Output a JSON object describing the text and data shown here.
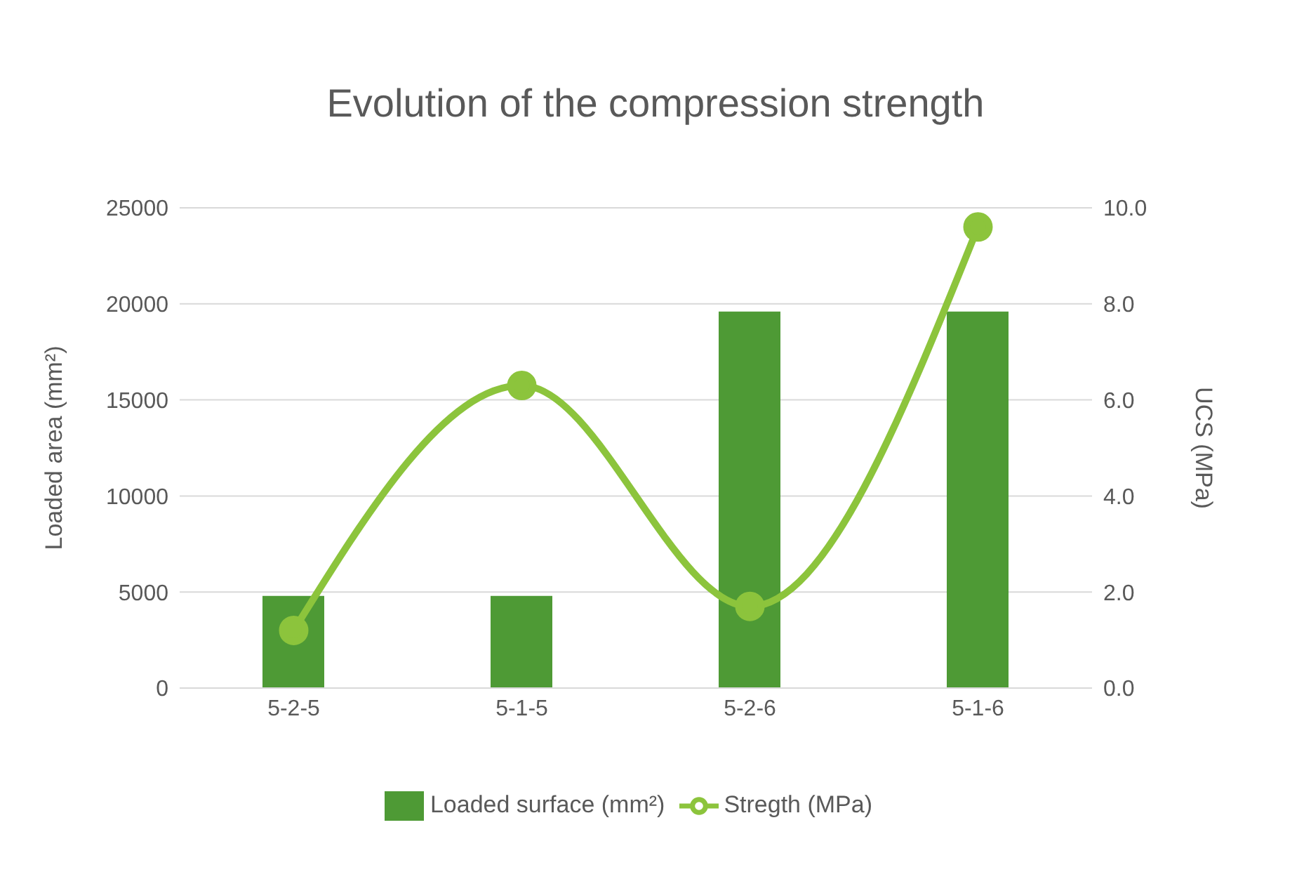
{
  "chart_data": {
    "type": "bar",
    "title": "Evolution of the compression strength",
    "ylabel": "Loaded area (mm²)",
    "y2label": "UCS (MPa)",
    "categories": [
      "5-2-5",
      "5-1-5",
      "5-2-6",
      "5-1-6"
    ],
    "series": [
      {
        "name": "Loaded surface (mm²)",
        "color": "#4e9a35",
        "values": [
          4800,
          4800,
          19600,
          19600
        ]
      },
      {
        "name": "Stregth (MPa)",
        "type": "line",
        "axis": "y2",
        "color": "#8cc43c",
        "values": [
          1.2,
          6.3,
          1.7,
          9.6
        ],
        "marker": "circle",
        "line_style": "solid"
      }
    ],
    "ylim": [
      0,
      25000
    ],
    "yticks": [
      0,
      5000,
      10000,
      15000,
      20000,
      25000
    ],
    "y2lim": [
      0,
      10
    ],
    "y2ticks": [
      {
        "value": 0,
        "label": "0.0"
      },
      {
        "value": 2,
        "label": "2.0"
      },
      {
        "value": 4,
        "label": "4.0"
      },
      {
        "value": 6,
        "label": "6.0"
      },
      {
        "value": 8,
        "label": "8.0"
      },
      {
        "value": 10,
        "label": "10.0"
      }
    ],
    "grid": "y",
    "legend": "bottom"
  }
}
